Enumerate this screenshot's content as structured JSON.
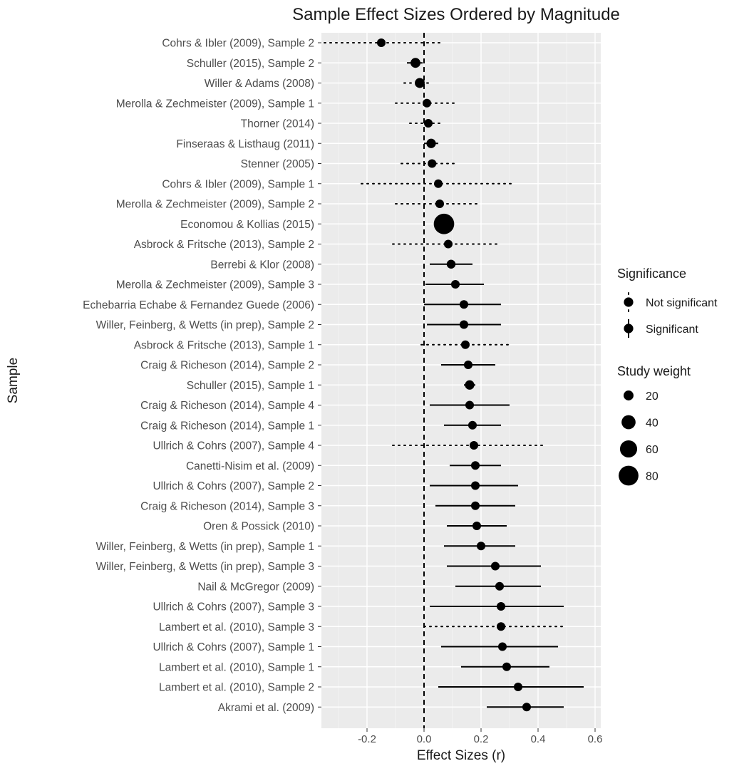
{
  "chart_data": {
    "type": "forest",
    "title": "Sample Effect Sizes Ordered by Magnitude",
    "xlabel": "Effect Sizes (r)",
    "ylabel": "Sample",
    "xlim": [
      -0.36,
      0.62
    ],
    "xticks": [
      -0.2,
      0.0,
      0.2,
      0.4,
      0.6
    ],
    "xtick_labels": [
      "-0.2",
      "0.0",
      "0.2",
      "0.4",
      "0.6"
    ],
    "reference_line": 0,
    "grid": true,
    "legend_position": "right",
    "legend": {
      "significance_title": "Significance",
      "significance_items": [
        {
          "label": "Not significant",
          "linetype": "dotted"
        },
        {
          "label": "Significant",
          "linetype": "solid"
        }
      ],
      "weight_title": "Study weight",
      "weight_items": [
        {
          "label": "20",
          "value": 20
        },
        {
          "label": "40",
          "value": 40
        },
        {
          "label": "60",
          "value": 60
        },
        {
          "label": "80",
          "value": 80
        }
      ]
    },
    "rows": [
      {
        "label": "Cohrs & Ibler (2009), Sample 2",
        "r": -0.15,
        "lo": -0.35,
        "hi": 0.06,
        "sig": false,
        "weight": 15
      },
      {
        "label": "Schuller (2015), Sample 2",
        "r": -0.03,
        "lo": -0.06,
        "hi": -0.005,
        "sig": true,
        "weight": 20
      },
      {
        "label": "Willer & Adams (2008)",
        "r": -0.015,
        "lo": -0.07,
        "hi": 0.03,
        "sig": false,
        "weight": 20
      },
      {
        "label": "Merolla & Zechmeister (2009), Sample 1",
        "r": 0.01,
        "lo": -0.1,
        "hi": 0.12,
        "sig": false,
        "weight": 15
      },
      {
        "label": "Thorner (2014)",
        "r": 0.015,
        "lo": -0.05,
        "hi": 0.07,
        "sig": false,
        "weight": 15
      },
      {
        "label": "Finseraas & Listhaug (2011)",
        "r": 0.025,
        "lo": 0.0,
        "hi": 0.05,
        "sig": true,
        "weight": 18
      },
      {
        "label": "Stenner (2005)",
        "r": 0.028,
        "lo": -0.08,
        "hi": 0.12,
        "sig": false,
        "weight": 15
      },
      {
        "label": "Cohrs & Ibler (2009), Sample 1",
        "r": 0.05,
        "lo": -0.22,
        "hi": 0.31,
        "sig": false,
        "weight": 15
      },
      {
        "label": "Merolla & Zechmeister (2009), Sample 2",
        "r": 0.055,
        "lo": -0.1,
        "hi": 0.19,
        "sig": false,
        "weight": 15
      },
      {
        "label": "Economou & Kollias (2015)",
        "r": 0.07,
        "lo": 0.06,
        "hi": 0.08,
        "sig": true,
        "weight": 85
      },
      {
        "label": "Asbrock & Fritsche (2013), Sample 2",
        "r": 0.085,
        "lo": -0.11,
        "hi": 0.27,
        "sig": false,
        "weight": 15
      },
      {
        "label": "Berrebi & Klor (2008)",
        "r": 0.095,
        "lo": 0.02,
        "hi": 0.17,
        "sig": true,
        "weight": 16
      },
      {
        "label": "Merolla & Zechmeister (2009), Sample 3",
        "r": 0.11,
        "lo": 0.005,
        "hi": 0.21,
        "sig": true,
        "weight": 15
      },
      {
        "label": "Echebarria Echabe & Fernandez Guede (2006)",
        "r": 0.14,
        "lo": 0.0,
        "hi": 0.27,
        "sig": true,
        "weight": 15
      },
      {
        "label": "Willer, Feinberg, & Wetts (in prep), Sample 2",
        "r": 0.14,
        "lo": 0.01,
        "hi": 0.27,
        "sig": true,
        "weight": 15
      },
      {
        "label": "Asbrock & Fritsche (2013), Sample 1",
        "r": 0.145,
        "lo": -0.01,
        "hi": 0.3,
        "sig": false,
        "weight": 15
      },
      {
        "label": "Craig & Richeson (2014), Sample 2",
        "r": 0.155,
        "lo": 0.06,
        "hi": 0.25,
        "sig": true,
        "weight": 15
      },
      {
        "label": "Schuller (2015), Sample 1",
        "r": 0.16,
        "lo": 0.14,
        "hi": 0.18,
        "sig": true,
        "weight": 18
      },
      {
        "label": "Craig & Richeson (2014), Sample 4",
        "r": 0.16,
        "lo": 0.02,
        "hi": 0.3,
        "sig": true,
        "weight": 15
      },
      {
        "label": "Craig & Richeson (2014), Sample 1",
        "r": 0.17,
        "lo": 0.07,
        "hi": 0.27,
        "sig": true,
        "weight": 15
      },
      {
        "label": "Ullrich & Cohrs (2007), Sample 4",
        "r": 0.175,
        "lo": -0.11,
        "hi": 0.43,
        "sig": false,
        "weight": 15
      },
      {
        "label": "Canetti-Nisim et al. (2009)",
        "r": 0.18,
        "lo": 0.09,
        "hi": 0.27,
        "sig": true,
        "weight": 15
      },
      {
        "label": "Ullrich & Cohrs (2007), Sample 2",
        "r": 0.18,
        "lo": 0.02,
        "hi": 0.33,
        "sig": true,
        "weight": 15
      },
      {
        "label": "Craig & Richeson (2014), Sample 3",
        "r": 0.18,
        "lo": 0.04,
        "hi": 0.32,
        "sig": true,
        "weight": 15
      },
      {
        "label": "Oren & Possick (2010)",
        "r": 0.185,
        "lo": 0.08,
        "hi": 0.29,
        "sig": true,
        "weight": 15
      },
      {
        "label": "Willer, Feinberg, & Wetts (in prep), Sample 1",
        "r": 0.2,
        "lo": 0.07,
        "hi": 0.32,
        "sig": true,
        "weight": 15
      },
      {
        "label": "Willer, Feinberg, & Wetts (in prep), Sample 3",
        "r": 0.25,
        "lo": 0.08,
        "hi": 0.41,
        "sig": true,
        "weight": 15
      },
      {
        "label": "Nail & McGregor (2009)",
        "r": 0.265,
        "lo": 0.11,
        "hi": 0.41,
        "sig": true,
        "weight": 15
      },
      {
        "label": "Ullrich & Cohrs (2007), Sample 3",
        "r": 0.27,
        "lo": 0.02,
        "hi": 0.49,
        "sig": true,
        "weight": 15
      },
      {
        "label": "Lambert et al. (2010), Sample 3",
        "r": 0.27,
        "lo": 0.0,
        "hi": 0.5,
        "sig": false,
        "weight": 15
      },
      {
        "label": "Ullrich & Cohrs (2007), Sample 1",
        "r": 0.275,
        "lo": 0.06,
        "hi": 0.47,
        "sig": true,
        "weight": 15
      },
      {
        "label": "Lambert et al. (2010), Sample 1",
        "r": 0.29,
        "lo": 0.13,
        "hi": 0.44,
        "sig": true,
        "weight": 15
      },
      {
        "label": "Lambert et al. (2010), Sample 2",
        "r": 0.33,
        "lo": 0.05,
        "hi": 0.56,
        "sig": true,
        "weight": 15
      },
      {
        "label": "Akrami et al. (2009)",
        "r": 0.36,
        "lo": 0.22,
        "hi": 0.49,
        "sig": true,
        "weight": 15
      }
    ]
  }
}
